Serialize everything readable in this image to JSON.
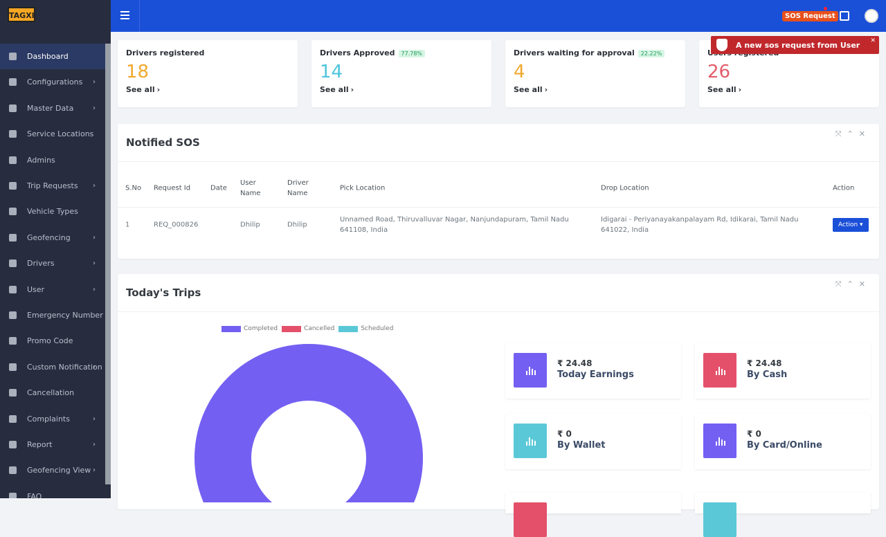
{
  "brand": "TAGXI",
  "sidebar": {
    "active": 0,
    "items": [
      {
        "label": "Dashboard",
        "submenu": false
      },
      {
        "label": "Configurations",
        "submenu": true
      },
      {
        "label": "Master Data",
        "submenu": true
      },
      {
        "label": "Service Locations",
        "submenu": false
      },
      {
        "label": "Admins",
        "submenu": false
      },
      {
        "label": "Trip Requests",
        "submenu": true
      },
      {
        "label": "Vehicle Types",
        "submenu": false
      },
      {
        "label": "Geofencing",
        "submenu": true
      },
      {
        "label": "Drivers",
        "submenu": true
      },
      {
        "label": "User",
        "submenu": true
      },
      {
        "label": "Emergency Number",
        "submenu": false
      },
      {
        "label": "Promo Code",
        "submenu": false
      },
      {
        "label": "Custom Notification",
        "submenu": true
      },
      {
        "label": "Cancellation",
        "submenu": false
      },
      {
        "label": "Complaints",
        "submenu": true
      },
      {
        "label": "Report",
        "submenu": true
      },
      {
        "label": "Geofencing View",
        "submenu": true
      },
      {
        "label": "FAQ",
        "submenu": false
      }
    ]
  },
  "topbar": {
    "sos_button": "SOS Request"
  },
  "toast": "A new sos request from User",
  "stats": [
    {
      "label": "Drivers registered",
      "value": "18",
      "color": "#f0a92e",
      "link": "See all"
    },
    {
      "label": "Drivers Approved",
      "badge": "77.78%",
      "value": "14",
      "color": "#4ec5dc",
      "link": "See all"
    },
    {
      "label": "Drivers waiting for approval",
      "badge": "22.22%",
      "value": "4",
      "color": "#f0a92e",
      "link": "See all"
    },
    {
      "label": "Users registered",
      "value": "26",
      "color": "#e35d6a",
      "link": "See all"
    }
  ],
  "sos_panel": {
    "title": "Notified SOS",
    "columns": [
      {
        "key": "s_no",
        "label": "S.No"
      },
      {
        "key": "request_id",
        "label": "Request Id"
      },
      {
        "key": "date",
        "label": "Date"
      },
      {
        "key": "user_name",
        "label": "User Name"
      },
      {
        "key": "driver_name",
        "label": "Driver Name"
      },
      {
        "key": "pick_location",
        "label": "Pick Location"
      },
      {
        "key": "drop_location",
        "label": "Drop Location"
      },
      {
        "key": "action",
        "label": "Action"
      }
    ],
    "rows": [
      {
        "s_no": "1",
        "request_id": "REQ_000826",
        "user_name": "Dhilip",
        "driver_name": "Dhilip",
        "pick_location": "Unnamed Road, Thiruvalluvar Nagar, Nanjundapuram, Tamil Nadu 641108, India",
        "drop_location": "Idigarai - Periyanayakanpalayam Rd, Idikarai, Tamil Nadu 641022, India",
        "action": "Action"
      }
    ]
  },
  "trips_panel": {
    "title": "Today's Trips",
    "legend": [
      {
        "name": "Completed",
        "color": "#7360f2"
      },
      {
        "name": "Cancelled",
        "color": "#e4506a"
      },
      {
        "name": "Scheduled",
        "color": "#5bc8d8"
      }
    ],
    "cards": [
      {
        "amount": "₹ 24.48",
        "label": "Today Earnings",
        "color": "#7360f2"
      },
      {
        "amount": "₹ 24.48",
        "label": "By Cash",
        "color": "#e4506a"
      },
      {
        "amount": "₹ 0",
        "label": "By Wallet",
        "color": "#5bc8d8"
      },
      {
        "amount": "₹ 0",
        "label": "By Card/Online",
        "color": "#7360f2"
      }
    ]
  }
}
